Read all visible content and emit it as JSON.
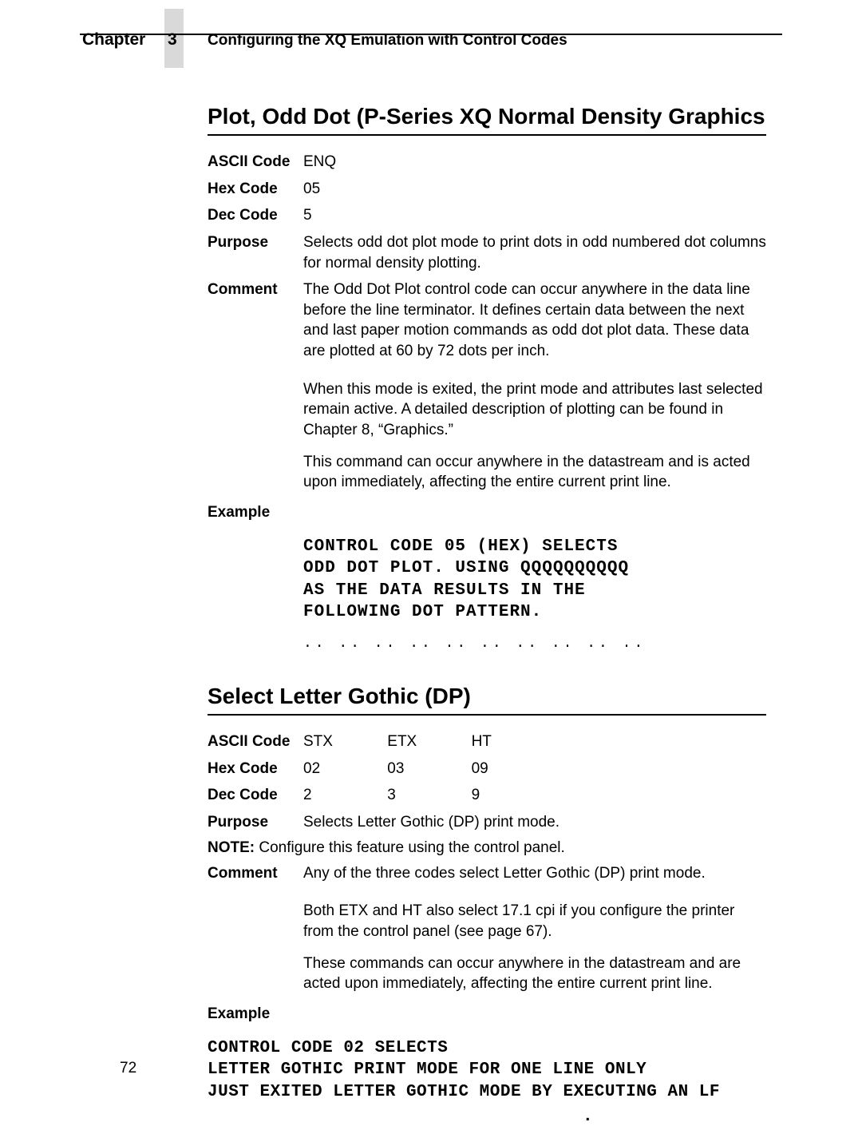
{
  "header": {
    "chapter_word": "Chapter",
    "chapter_number": "3",
    "chapter_title": "Configuring the XQ Emulation with Control Codes"
  },
  "section1": {
    "heading": "Plot, Odd Dot (P-Series XQ Normal Density Graphics",
    "ascii_label": "ASCII Code",
    "ascii_value": "ENQ",
    "hex_label": "Hex Code",
    "hex_value": "05",
    "dec_label": "Dec Code",
    "dec_value": "5",
    "purpose_label": "Purpose",
    "purpose_text": "Selects odd dot plot mode to print dots in odd numbered dot columns for normal density plotting.",
    "comment_label": "Comment",
    "comment_p1": "The Odd Dot Plot control code can occur anywhere in the data line before the line terminator. It defines certain data between the next and last paper motion commands as odd dot plot data. These data are plotted at 60 by 72 dots per inch.",
    "comment_p2": "When this mode is exited, the print mode and attributes last selected remain active. A detailed description of plotting can be found in Chapter 8, “Graphics.”",
    "comment_p3": "This command can occur anywhere in the datastream and is acted upon immediately, affecting the entire current print line.",
    "example_label": "Example",
    "example_text": "CONTROL CODE 05 (HEX) SELECTS\nODD DOT PLOT. USING QQQQQQQQQQ\nAS THE DATA RESULTS IN THE\nFOLLOWING DOT PATTERN.",
    "dot_pattern": ".. .. .. .. .. .. .. .. .. .."
  },
  "section2": {
    "heading": "Select Letter Gothic (DP)",
    "ascii_label": "ASCII Code",
    "ascii_v1": "STX",
    "ascii_v2": "ETX",
    "ascii_v3": "HT",
    "hex_label": "Hex Code",
    "hex_v1": "02",
    "hex_v2": "03",
    "hex_v3": "09",
    "dec_label": "Dec Code",
    "dec_v1": "2",
    "dec_v2": "3",
    "dec_v3": "9",
    "purpose_label": "Purpose",
    "purpose_text": "Selects Letter Gothic (DP) print mode.",
    "note_label": "NOTE:",
    "note_text": "Configure this feature using the control panel.",
    "comment_label": "Comment",
    "comment_p1": "Any of the three codes select Letter Gothic (DP) print mode.",
    "comment_p2": "Both ETX and HT also select 17.1 cpi if you configure the printer from the control panel (see page 67).",
    "comment_p3": "These commands can occur anywhere in the datastream and are acted upon immediately, affecting the entire current print line.",
    "example_label": "Example",
    "example_text": "CONTROL CODE 02 SELECTS\nLETTER GOTHIC PRINT MODE FOR ONE LINE ONLY\nJUST EXITED LETTER GOTHIC MODE BY EXECUTING AN LF",
    "stray_dot": "."
  },
  "page_number": "72"
}
